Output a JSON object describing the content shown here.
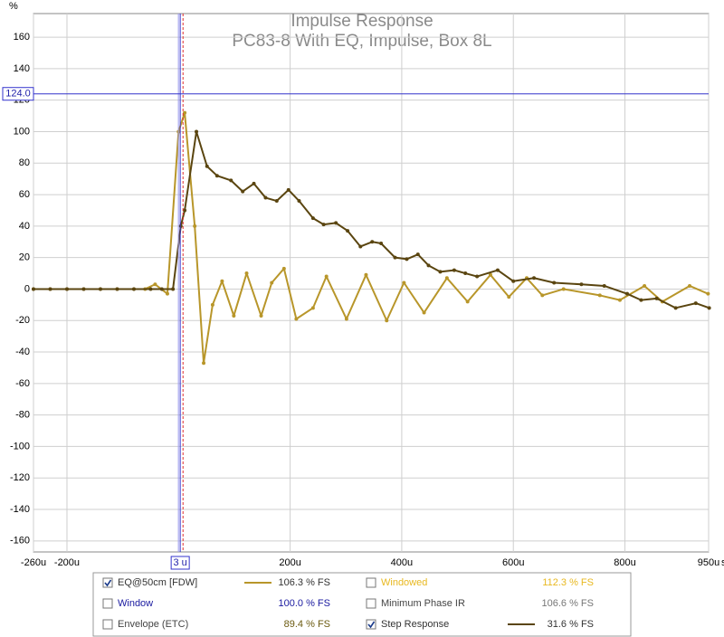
{
  "chart_data": {
    "type": "line",
    "title": "Impulse Response",
    "subtitle": "PC83-8 With EQ, Impulse, Box 8L",
    "y_unit": "%",
    "x_unit": "s",
    "xlim": [
      -260,
      950
    ],
    "ylim": [
      -167,
      175
    ],
    "xticks": [
      {
        "value": -260,
        "label": "-260u"
      },
      {
        "value": -200,
        "label": "-200u"
      },
      {
        "value": 200,
        "label": "200u"
      },
      {
        "value": 400,
        "label": "400u"
      },
      {
        "value": 600,
        "label": "600u"
      },
      {
        "value": 800,
        "label": "800u"
      },
      {
        "value": 950,
        "label": "950u"
      }
    ],
    "yticks": [
      -160,
      -140,
      -120,
      -100,
      -80,
      -60,
      -40,
      -20,
      0,
      20,
      40,
      60,
      80,
      100,
      120,
      140,
      160
    ],
    "grid": true,
    "cursor_x": {
      "value": 3,
      "label": "3 u"
    },
    "cursor_y": {
      "value": 124,
      "label": "124.0"
    },
    "reference_x": 8,
    "series": [
      {
        "name": "EQ@50cm [FDW]",
        "color": "#b8962a",
        "readout": "106.3 % FS",
        "checked": true,
        "x": [
          -260,
          -230,
          -200,
          -170,
          -140,
          -110,
          -80,
          -60,
          -42,
          -20,
          0,
          11,
          29,
          45,
          61,
          78,
          99,
          122,
          148,
          167,
          189,
          211,
          241,
          265,
          301,
          336,
          373,
          404,
          440,
          481,
          518,
          559,
          592,
          624,
          652,
          690,
          755,
          791,
          835,
          867,
          916,
          949
        ],
        "values": [
          0,
          0,
          0,
          0,
          0,
          0,
          0,
          0,
          3,
          -3,
          100,
          112,
          40,
          -47,
          -10,
          5,
          -17,
          10,
          -17,
          4,
          13,
          -19,
          -12,
          8,
          -19,
          9,
          -20,
          4,
          -15,
          7,
          -8,
          9,
          -5,
          7,
          -4,
          0,
          -4,
          -7,
          2,
          -8,
          2,
          -3
        ]
      },
      {
        "name": "Step Response",
        "color": "#5a4510",
        "readout": "31.6 % FS",
        "checked": true,
        "x": [
          -260,
          -230,
          -200,
          -170,
          -140,
          -110,
          -80,
          -50,
          -30,
          -10,
          4,
          11,
          32,
          51,
          69,
          94,
          115,
          135,
          156,
          176,
          197,
          216,
          241,
          260,
          282,
          303,
          326,
          347,
          363,
          388,
          409,
          429,
          448,
          469,
          494,
          514,
          535,
          572,
          600,
          637,
          673,
          722,
          763,
          804,
          829,
          857,
          891,
          927,
          951
        ],
        "values": [
          0,
          0,
          0,
          0,
          0,
          0,
          0,
          0,
          0,
          0,
          40,
          50,
          100,
          78,
          72,
          69,
          62,
          67,
          58,
          56,
          63,
          56,
          45,
          41,
          42,
          37,
          27,
          30,
          29,
          20,
          19,
          22,
          15,
          11,
          12,
          10,
          8,
          12,
          5,
          7,
          4,
          3,
          2,
          -3,
          -7,
          -6,
          -12,
          -9,
          -12
        ]
      }
    ],
    "other_traces": [
      {
        "name": "Window",
        "color": "#1a1aa0",
        "readout": "100.0 % FS",
        "checked": false
      },
      {
        "name": "Envelope (ETC)",
        "color": "#6b5a10",
        "readout": "89.4 % FS",
        "checked": false
      },
      {
        "name": "Windowed",
        "color": "#e8b820",
        "readout": "112.3 % FS",
        "checked": false
      },
      {
        "name": "Minimum Phase IR",
        "color": "#777777",
        "readout": "106.6 % FS",
        "checked": false
      }
    ]
  }
}
